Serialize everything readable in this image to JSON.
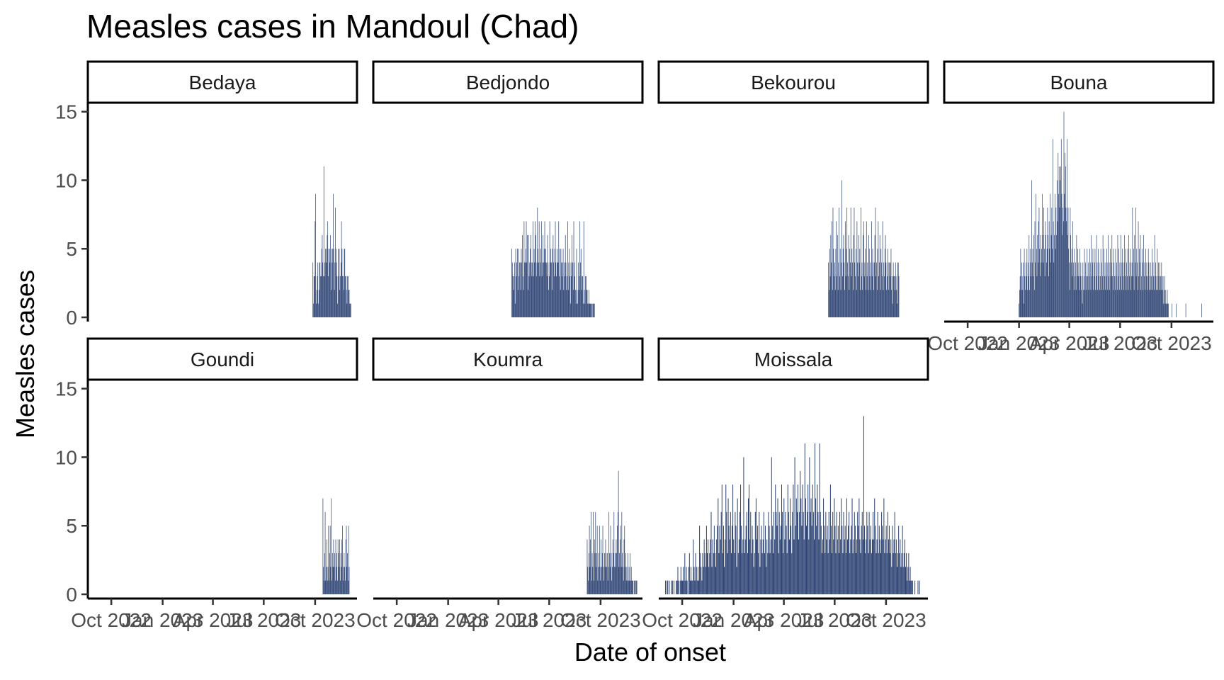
{
  "chart_data": {
    "type": "bar",
    "title": "Measles cases in Mandoul (Chad)",
    "xlabel": "Date of onset",
    "ylabel": "Measles cases",
    "ylim": [
      0,
      15.5
    ],
    "y_ticks": [
      0,
      5,
      10,
      15
    ],
    "xlim": [
      "2022-08-20",
      "2023-12-15"
    ],
    "x_ticks": [
      {
        "date": "2022-10-01",
        "label": "Oct 2022"
      },
      {
        "date": "2023-01-01",
        "label": "Jan 2023"
      },
      {
        "date": "2023-04-01",
        "label": "Apr 2023"
      },
      {
        "date": "2023-07-01",
        "label": "Jul 2023"
      },
      {
        "date": "2023-10-01",
        "label": "Oct 2023"
      }
    ],
    "bar_color": "#2e4474",
    "grid": false,
    "panels": [
      {
        "name": "Bedaya",
        "start": "2023-09-27",
        "end": "2023-12-04",
        "values": [
          4,
          1,
          3,
          3,
          7,
          9,
          1,
          2,
          3,
          4,
          1,
          2,
          4,
          4,
          3,
          3,
          5,
          6,
          4,
          3,
          11,
          3,
          4,
          5,
          4,
          5,
          6,
          7,
          3,
          5,
          5,
          4,
          6,
          2,
          5,
          4,
          5,
          9,
          5,
          2,
          4,
          8,
          5,
          4,
          3,
          1,
          5,
          3,
          5,
          2,
          3,
          4,
          7,
          5,
          3,
          3,
          2,
          5,
          5,
          3,
          3,
          2,
          1,
          3,
          3,
          2,
          2,
          1,
          1,
          1
        ]
      },
      {
        "name": "Bedjondo",
        "start": "2023-04-25",
        "end": "2023-09-21",
        "values": [
          5,
          4,
          3,
          2,
          3,
          4,
          1,
          5,
          3,
          4,
          5,
          2,
          5,
          3,
          4,
          4,
          2,
          5,
          4,
          6,
          3,
          2,
          7,
          4,
          4,
          5,
          7,
          4,
          6,
          2,
          6,
          3,
          4,
          5,
          6,
          4,
          3,
          4,
          7,
          3,
          5,
          4,
          7,
          6,
          3,
          4,
          8,
          5,
          4,
          7,
          3,
          4,
          5,
          7,
          3,
          4,
          6,
          4,
          5,
          7,
          4,
          5,
          4,
          3,
          6,
          4,
          2,
          3,
          7,
          4,
          5,
          4,
          2,
          5,
          6,
          4,
          3,
          5,
          7,
          4,
          3,
          5,
          4,
          4,
          7,
          3,
          5,
          2,
          5,
          4,
          3,
          4,
          5,
          2,
          4,
          3,
          6,
          4,
          2,
          3,
          7,
          2,
          4,
          5,
          3,
          1,
          4,
          3,
          6,
          4,
          2,
          7,
          4,
          3,
          2,
          1,
          5,
          2,
          1,
          4,
          2,
          3,
          7,
          4,
          5,
          2,
          3,
          3,
          1,
          7,
          2,
          1,
          3,
          3,
          2,
          2,
          1,
          1,
          2,
          1,
          1,
          1,
          1,
          1,
          0,
          1,
          1,
          1,
          1,
          0
        ]
      },
      {
        "name": "Bekourou",
        "start": "2023-06-20",
        "end": "2023-10-24",
        "values": [
          4,
          2,
          5,
          3,
          6,
          4,
          7,
          2,
          8,
          5,
          3,
          4,
          2,
          5,
          7,
          3,
          6,
          2,
          4,
          8,
          3,
          5,
          2,
          4,
          10,
          3,
          5,
          6,
          4,
          2,
          7,
          3,
          5,
          8,
          4,
          3,
          6,
          2,
          5,
          4,
          8,
          3,
          5,
          4,
          2,
          6,
          8,
          4,
          3,
          5,
          2,
          7,
          4,
          3,
          6,
          4,
          5,
          2,
          8,
          3,
          4,
          2,
          6,
          7,
          3,
          4,
          5,
          2,
          7,
          3,
          4,
          2,
          6,
          5,
          3,
          4,
          2,
          7,
          3,
          5,
          4,
          2,
          4,
          6,
          8,
          3,
          4,
          2,
          5,
          7,
          3,
          4,
          6,
          2,
          5,
          4,
          3,
          7,
          2,
          4,
          3,
          5,
          6,
          4,
          2,
          3,
          5,
          4,
          2,
          4,
          3,
          4,
          5,
          2,
          3,
          1,
          4,
          3,
          3,
          2,
          4,
          3,
          2,
          1,
          4,
          4,
          3
        ]
      },
      {
        "name": "Bouna",
        "start": "2023-01-01",
        "end": "2023-11-24",
        "values": [
          1,
          2,
          3,
          5,
          2,
          4,
          3,
          2,
          4,
          1,
          5,
          3,
          2,
          4,
          3,
          5,
          2,
          4,
          3,
          6,
          2,
          5,
          4,
          3,
          10,
          4,
          5,
          3,
          6,
          2,
          7,
          4,
          9,
          5,
          3,
          6,
          4,
          7,
          8,
          5,
          3,
          6,
          4,
          5,
          9,
          6,
          4,
          8,
          5,
          3,
          7,
          6,
          4,
          5,
          8,
          6,
          3,
          7,
          5,
          9,
          4,
          6,
          8,
          5,
          13,
          7,
          4,
          6,
          9,
          5,
          8,
          6,
          10,
          7,
          12,
          9,
          11,
          8,
          10,
          11,
          13,
          9,
          6,
          8,
          7,
          15,
          9,
          12,
          11,
          8,
          7,
          13,
          6,
          8,
          5,
          4,
          2,
          8,
          6,
          4,
          5,
          3,
          7,
          4,
          2,
          5,
          3,
          4,
          2,
          6,
          3,
          5,
          4,
          3,
          2,
          5,
          3,
          4,
          2,
          3,
          1,
          4,
          2,
          3,
          5,
          2,
          4,
          3,
          2,
          5,
          3,
          4,
          2,
          3,
          5,
          4,
          2,
          6,
          3,
          4,
          5,
          2,
          3,
          4,
          5,
          2,
          3,
          6,
          4,
          2,
          5,
          3,
          4,
          2,
          3,
          5,
          2,
          4,
          3,
          6,
          2,
          5,
          3,
          4,
          2,
          3,
          5,
          4,
          2,
          6,
          3,
          4,
          2,
          5,
          3,
          4,
          6,
          3,
          2,
          5,
          4,
          3,
          2,
          5,
          3,
          4,
          2,
          6,
          3,
          5,
          2,
          4,
          3,
          6,
          2,
          4,
          5,
          3,
          2,
          4,
          6,
          3,
          5,
          2,
          4,
          3,
          5,
          2,
          6,
          3,
          4,
          5,
          2,
          3,
          4,
          8,
          3,
          5,
          2,
          6,
          4,
          8,
          3,
          5,
          4,
          2,
          7,
          3,
          5,
          4,
          6,
          2,
          3,
          5,
          4,
          2,
          6,
          3,
          4,
          2,
          5,
          3,
          4,
          2,
          3,
          5,
          4,
          2,
          3,
          4,
          2,
          3,
          5,
          2,
          4,
          3,
          2,
          6,
          3,
          4,
          2,
          3,
          5,
          2,
          4,
          3,
          2,
          4,
          3,
          2,
          4,
          3,
          2,
          3,
          1,
          2,
          3,
          1,
          2,
          1,
          1,
          2,
          1,
          1,
          0,
          0,
          0,
          0,
          0,
          0,
          1,
          0,
          0,
          0,
          0,
          0,
          0,
          0,
          1,
          0,
          0,
          0,
          0,
          0,
          0,
          0,
          0,
          0,
          0,
          0,
          0,
          0,
          0,
          0,
          0,
          0,
          1,
          0,
          0,
          0,
          0,
          0,
          0,
          0,
          0,
          0,
          0,
          0,
          0,
          0,
          0,
          0,
          0,
          0,
          0,
          0,
          0,
          0,
          0,
          0,
          0,
          0,
          0,
          0,
          0,
          0,
          1
        ]
      },
      {
        "name": "Goundi",
        "start": "2023-10-15",
        "end": "2023-12-01",
        "values": [
          7,
          2,
          1,
          3,
          6,
          1,
          2,
          4,
          1,
          2,
          5,
          1,
          3,
          5,
          2,
          7,
          1,
          3,
          2,
          4,
          2,
          3,
          1,
          4,
          2,
          3,
          1,
          4,
          3,
          2,
          4,
          1,
          3,
          2,
          4,
          5,
          1,
          2,
          3,
          2,
          1,
          4,
          5,
          2,
          3,
          1,
          5,
          2
        ]
      },
      {
        "name": "Koumra",
        "start": "2023-09-07",
        "end": "2023-12-05",
        "values": [
          4,
          2,
          1,
          3,
          5,
          2,
          4,
          6,
          1,
          3,
          2,
          6,
          1,
          4,
          3,
          6,
          2,
          3,
          5,
          1,
          2,
          3,
          5,
          2,
          1,
          4,
          2,
          3,
          5,
          2,
          1,
          3,
          2,
          4,
          3,
          2,
          3,
          1,
          2,
          6,
          3,
          2,
          5,
          3,
          1,
          2,
          4,
          3,
          6,
          2,
          3,
          2,
          4,
          3,
          5,
          6,
          9,
          2,
          3,
          4,
          5,
          2,
          6,
          3,
          2,
          1,
          4,
          5,
          2,
          3,
          1,
          2,
          1,
          3,
          1,
          2,
          1,
          3,
          1,
          2,
          1,
          1,
          1,
          0,
          1,
          1,
          0,
          1,
          1,
          1
        ]
      },
      {
        "name": "Moissala",
        "start": "2022-09-01",
        "end": "2023-11-30",
        "values": [
          1,
          0,
          1,
          1,
          0,
          1,
          0,
          0,
          1,
          1,
          0,
          1,
          0,
          0,
          1,
          1,
          2,
          1,
          0,
          1,
          2,
          1,
          1,
          2,
          1,
          3,
          1,
          2,
          1,
          0,
          2,
          3,
          1,
          2,
          1,
          1,
          4,
          2,
          1,
          3,
          2,
          1,
          2,
          1,
          5,
          3,
          2,
          1,
          3,
          2,
          4,
          3,
          2,
          5,
          3,
          4,
          2,
          3,
          4,
          6,
          2,
          4,
          3,
          5,
          3,
          2,
          4,
          5,
          7,
          3,
          5,
          4,
          6,
          8,
          3,
          5,
          2,
          4,
          8,
          6,
          3,
          7,
          5,
          4,
          6,
          3,
          5,
          8,
          4,
          3,
          6,
          5,
          2,
          7,
          3,
          4,
          6,
          8,
          5,
          3,
          4,
          10,
          3,
          4,
          5,
          6,
          3,
          7,
          8,
          4,
          6,
          3,
          5,
          4,
          2,
          3,
          6,
          7,
          4,
          5,
          3,
          6,
          2,
          4,
          5,
          3,
          4,
          6,
          3,
          5,
          2,
          4,
          3,
          6,
          5,
          3,
          4,
          10,
          5,
          3,
          6,
          4,
          8,
          6,
          5,
          7,
          3,
          6,
          4,
          5,
          8,
          6,
          3,
          7,
          4,
          6,
          5,
          3,
          8,
          6,
          4,
          7,
          5,
          3,
          6,
          8,
          4,
          10,
          5,
          7,
          6,
          8,
          4,
          6,
          9,
          7,
          5,
          8,
          6,
          4,
          11,
          7,
          5,
          6,
          8,
          4,
          10,
          6,
          7,
          5,
          8,
          6,
          4,
          11,
          7,
          5,
          8,
          6,
          4,
          11,
          6,
          5,
          3,
          4,
          7,
          5,
          3,
          6,
          4,
          5,
          3,
          6,
          4,
          8,
          5,
          3,
          6,
          4,
          7,
          5,
          3,
          6,
          4,
          5,
          3,
          6,
          4,
          7,
          5,
          3,
          6,
          4,
          5,
          3,
          7,
          4,
          5,
          6,
          3,
          4,
          5,
          7,
          3,
          4,
          6,
          5,
          3,
          4,
          6,
          5,
          7,
          4,
          3,
          5,
          6,
          4,
          13,
          5,
          3,
          4,
          6,
          5,
          3,
          6,
          4,
          5,
          3,
          4,
          6,
          4,
          7,
          5,
          3,
          4,
          6,
          3,
          5,
          4,
          3,
          6,
          5,
          4,
          7,
          3,
          4,
          5,
          3,
          6,
          4,
          5,
          3,
          4,
          2,
          5,
          3,
          4,
          6,
          3,
          4,
          2,
          3,
          5,
          3,
          4,
          2,
          3,
          5,
          2,
          3,
          4,
          2,
          3,
          1,
          2,
          3,
          1,
          2,
          1,
          1,
          1,
          0,
          0,
          1,
          0,
          0,
          0,
          1,
          0,
          1
        ]
      }
    ]
  }
}
